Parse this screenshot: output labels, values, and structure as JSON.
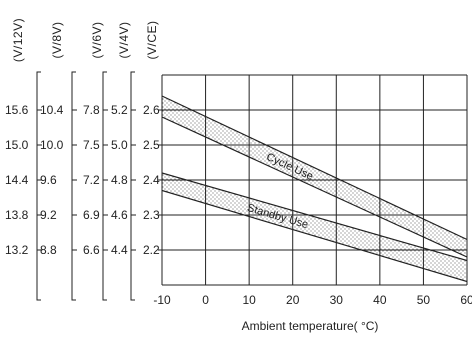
{
  "chart_data": {
    "type": "area",
    "xlabel": "Ambient temperature( °C)",
    "x_ticks": [
      "-10",
      "0",
      "10",
      "20",
      "30",
      "40",
      "50",
      "60"
    ],
    "xlim": [
      -10,
      60
    ],
    "ylim": [
      2.1,
      2.7
    ],
    "grid": true,
    "y_axes": [
      {
        "header": "(V/12V)",
        "ticks": [
          "15.6",
          "15.0",
          "14.4",
          "13.8",
          "13.2"
        ],
        "scale_factor": 6
      },
      {
        "header": "(V/8V)",
        "ticks": [
          "10.4",
          "10.0",
          "9.6",
          "9.2",
          "8.8"
        ],
        "scale_factor": 4
      },
      {
        "header": "(V/6V)",
        "ticks": [
          "7.8",
          "7.5",
          "7.2",
          "6.9",
          "6.6"
        ],
        "scale_factor": 3
      },
      {
        "header": "(V/4V)",
        "ticks": [
          "5.2",
          "5.0",
          "4.8",
          "4.6",
          "4.4"
        ],
        "scale_factor": 2
      },
      {
        "header": "(V/CE)",
        "ticks": [
          "2.6",
          "2.5",
          "2.4",
          "2.3",
          "2.2"
        ],
        "scale_factor": 1
      }
    ],
    "y_tick_values": [
      2.6,
      2.5,
      2.4,
      2.3,
      2.2
    ],
    "series": [
      {
        "name": "Cycle Use",
        "x": [
          -10,
          60
        ],
        "upper": [
          2.64,
          2.23
        ],
        "lower": [
          2.58,
          2.18
        ]
      },
      {
        "name": "Standby Use",
        "x": [
          -10,
          60
        ],
        "upper": [
          2.42,
          2.17
        ],
        "lower": [
          2.37,
          2.11
        ]
      }
    ],
    "colors": {
      "line": "#222222",
      "band_fill": "#ffffff",
      "dots": "#333333",
      "background": "#ffffff"
    }
  }
}
